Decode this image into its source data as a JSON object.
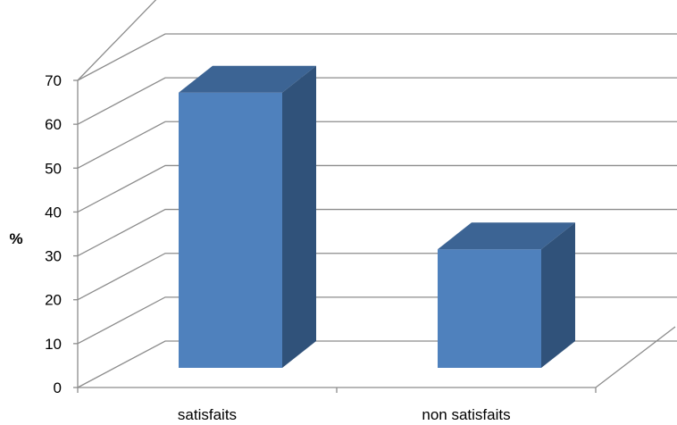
{
  "chart_data": {
    "type": "bar",
    "style": "3d-column",
    "categories": [
      "satisfaits",
      "non satisfaits"
    ],
    "series": [
      {
        "values": [
          65,
          28
        ]
      }
    ],
    "title": "",
    "xlabel": "",
    "ylabel": "%",
    "ylim": [
      0,
      70
    ],
    "yticks": [
      0,
      10,
      20,
      30,
      40,
      50,
      60,
      70
    ],
    "grid": true,
    "legend": "none",
    "colors": {
      "front": "#4f81bd",
      "top": "#3c6494",
      "side": "#30527a",
      "grid": "#8c8c8c"
    }
  }
}
